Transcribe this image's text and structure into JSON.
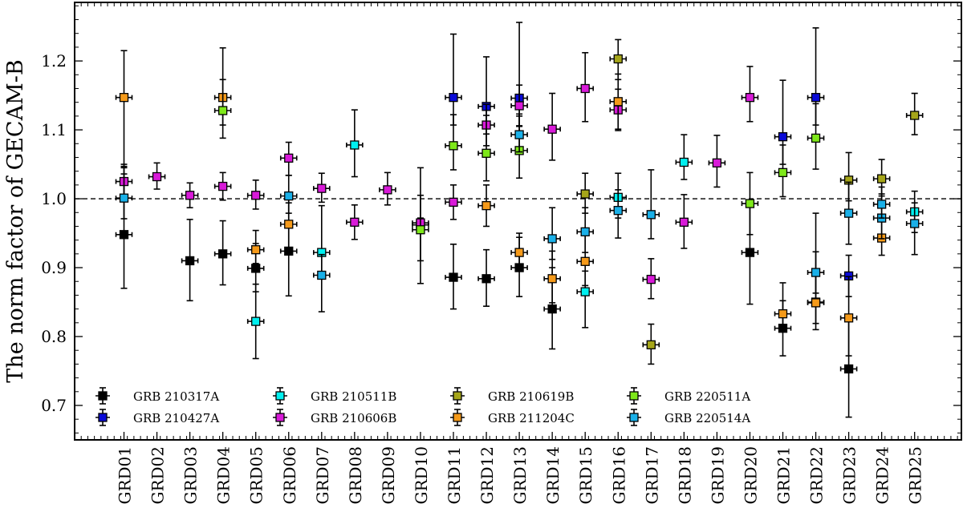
{
  "chart_data": {
    "type": "scatter",
    "title": "",
    "xlabel": "",
    "ylabel": "The norm factor of GECAM-B",
    "ylim": [
      0.65,
      1.285
    ],
    "yticks": [
      0.7,
      0.8,
      0.9,
      1.0,
      1.1,
      1.2
    ],
    "ytick_labels": [
      "0.7",
      "0.8",
      "0.9",
      "1.0",
      "1.1",
      "1.2"
    ],
    "reference_line": 1.0,
    "categories": [
      "GRD01",
      "GRD02",
      "GRD03",
      "GRD04",
      "GRD05",
      "GRD06",
      "GRD07",
      "GRD08",
      "GRD09",
      "GRD10",
      "GRD11",
      "GRD12",
      "GRD13",
      "GRD14",
      "GRD15",
      "GRD16",
      "GRD17",
      "GRD18",
      "GRD19",
      "GRD20",
      "GRD21",
      "GRD22",
      "GRD23",
      "GRD24",
      "GRD25"
    ],
    "legend_position": "bottom-left",
    "series": [
      {
        "name": "GRB 210317A",
        "color": "#000000",
        "points": [
          {
            "x": "GRD01",
            "y": 0.948,
            "err_lo": 0.078,
            "err_hi": 0.097
          },
          {
            "x": "GRD03",
            "y": 0.91,
            "err_lo": 0.058,
            "err_hi": 0.06
          },
          {
            "x": "GRD04",
            "y": 0.92,
            "err_lo": 0.045,
            "err_hi": 0.048
          },
          {
            "x": "GRD05",
            "y": 0.899,
            "err_lo": 0.034,
            "err_hi": 0.036
          },
          {
            "x": "GRD06",
            "y": 0.924,
            "err_lo": 0.065,
            "err_hi": 0.07
          },
          {
            "x": "GRD11",
            "y": 0.886,
            "err_lo": 0.046,
            "err_hi": 0.048
          },
          {
            "x": "GRD12",
            "y": 0.884,
            "err_lo": 0.04,
            "err_hi": 0.042
          },
          {
            "x": "GRD13",
            "y": 0.9,
            "err_lo": 0.042,
            "err_hi": 0.044
          },
          {
            "x": "GRD14",
            "y": 0.84,
            "err_lo": 0.058,
            "err_hi": 0.06
          },
          {
            "x": "GRD20",
            "y": 0.922,
            "err_lo": 0.075,
            "err_hi": 0.075
          },
          {
            "x": "GRD21",
            "y": 0.812,
            "err_lo": 0.04,
            "err_hi": 0.04
          },
          {
            "x": "GRD22",
            "y": 0.85,
            "err_lo": 0.04,
            "err_hi": 0.04
          },
          {
            "x": "GRD23",
            "y": 0.753,
            "err_lo": 0.07,
            "err_hi": 0.07
          }
        ]
      },
      {
        "name": "GRB 210427A",
        "color": "#0a0ad8",
        "points": [
          {
            "x": "GRD11",
            "y": 1.147,
            "err_lo": 0.04,
            "err_hi": 0.092
          },
          {
            "x": "GRD12",
            "y": 1.134,
            "err_lo": 0.04,
            "err_hi": 0.072
          },
          {
            "x": "GRD13",
            "y": 1.146,
            "err_lo": 0.04,
            "err_hi": 0.11
          },
          {
            "x": "GRD21",
            "y": 1.09,
            "err_lo": 0.04,
            "err_hi": 0.082
          },
          {
            "x": "GRD22",
            "y": 1.147,
            "err_lo": 0.04,
            "err_hi": 0.101
          },
          {
            "x": "GRD23",
            "y": 0.888,
            "err_lo": 0.03,
            "err_hi": 0.03
          }
        ]
      },
      {
        "name": "GRB 210511B",
        "color": "#00f0f0",
        "points": [
          {
            "x": "GRD05",
            "y": 0.822,
            "err_lo": 0.054,
            "err_hi": 0.054
          },
          {
            "x": "GRD07",
            "y": 0.922,
            "err_lo": 0.032,
            "err_hi": 0.068
          },
          {
            "x": "GRD08",
            "y": 1.078,
            "err_lo": 0.046,
            "err_hi": 0.051
          },
          {
            "x": "GRD10",
            "y": 0.962,
            "err_lo": 0.01,
            "err_hi": 0.01
          },
          {
            "x": "GRD15",
            "y": 0.865,
            "err_lo": 0.052,
            "err_hi": 0.03
          },
          {
            "x": "GRD16",
            "y": 1.002,
            "err_lo": 0.03,
            "err_hi": 0.035
          },
          {
            "x": "GRD18",
            "y": 1.053,
            "err_lo": 0.025,
            "err_hi": 0.04
          },
          {
            "x": "GRD25",
            "y": 0.981,
            "err_lo": 0.03,
            "err_hi": 0.03
          }
        ]
      },
      {
        "name": "GRB 210606B",
        "color": "#d81ad8",
        "points": [
          {
            "x": "GRD01",
            "y": 1.025,
            "err_lo": 0.025,
            "err_hi": 0.025
          },
          {
            "x": "GRD02",
            "y": 1.032,
            "err_lo": 0.018,
            "err_hi": 0.02
          },
          {
            "x": "GRD03",
            "y": 1.005,
            "err_lo": 0.018,
            "err_hi": 0.018
          },
          {
            "x": "GRD04",
            "y": 1.018,
            "err_lo": 0.02,
            "err_hi": 0.02
          },
          {
            "x": "GRD05",
            "y": 1.005,
            "err_lo": 0.02,
            "err_hi": 0.022
          },
          {
            "x": "GRD06",
            "y": 1.059,
            "err_lo": 0.025,
            "err_hi": 0.023
          },
          {
            "x": "GRD07",
            "y": 1.015,
            "err_lo": 0.02,
            "err_hi": 0.022
          },
          {
            "x": "GRD08",
            "y": 0.966,
            "err_lo": 0.025,
            "err_hi": 0.025
          },
          {
            "x": "GRD09",
            "y": 1.013,
            "err_lo": 0.022,
            "err_hi": 0.025
          },
          {
            "x": "GRD10",
            "y": 0.965,
            "err_lo": 0.088,
            "err_hi": 0.08
          },
          {
            "x": "GRD11",
            "y": 0.995,
            "err_lo": 0.025,
            "err_hi": 0.025
          },
          {
            "x": "GRD12",
            "y": 1.107,
            "err_lo": 0.03,
            "err_hi": 0.03
          },
          {
            "x": "GRD13",
            "y": 1.135,
            "err_lo": 0.03,
            "err_hi": 0.03
          },
          {
            "x": "GRD14",
            "y": 1.101,
            "err_lo": 0.045,
            "err_hi": 0.052
          },
          {
            "x": "GRD15",
            "y": 1.16,
            "err_lo": 0.048,
            "err_hi": 0.052
          },
          {
            "x": "GRD16",
            "y": 1.129,
            "err_lo": 0.03,
            "err_hi": 0.03
          },
          {
            "x": "GRD17",
            "y": 0.883,
            "err_lo": 0.028,
            "err_hi": 0.03
          },
          {
            "x": "GRD18",
            "y": 0.966,
            "err_lo": 0.038,
            "err_hi": 0.04
          },
          {
            "x": "GRD19",
            "y": 1.052,
            "err_lo": 0.035,
            "err_hi": 0.04
          },
          {
            "x": "GRD20",
            "y": 1.147,
            "err_lo": 0.035,
            "err_hi": 0.045
          }
        ]
      },
      {
        "name": "GRB 210619B",
        "color": "#a6a61a",
        "points": [
          {
            "x": "GRD15",
            "y": 1.007,
            "err_lo": 0.028,
            "err_hi": 0.03
          },
          {
            "x": "GRD16",
            "y": 1.203,
            "err_lo": 0.03,
            "err_hi": 0.028
          },
          {
            "x": "GRD17",
            "y": 0.788,
            "err_lo": 0.028,
            "err_hi": 0.03
          },
          {
            "x": "GRD23",
            "y": 1.027,
            "err_lo": 0.03,
            "err_hi": 0.04
          },
          {
            "x": "GRD24",
            "y": 1.029,
            "err_lo": 0.025,
            "err_hi": 0.028
          },
          {
            "x": "GRD25",
            "y": 1.121,
            "err_lo": 0.028,
            "err_hi": 0.032
          }
        ]
      },
      {
        "name": "GRB 211204C",
        "color": "#f59a1a",
        "points": [
          {
            "x": "GRD01",
            "y": 1.147,
            "err_lo": 0.1,
            "err_hi": 0.068
          },
          {
            "x": "GRD04",
            "y": 1.147,
            "err_lo": 0.04,
            "err_hi": 0.072
          },
          {
            "x": "GRD05",
            "y": 0.926,
            "err_lo": 0.02,
            "err_hi": 0.028
          },
          {
            "x": "GRD06",
            "y": 0.963,
            "err_lo": 0.04,
            "err_hi": 0.04
          },
          {
            "x": "GRD12",
            "y": 0.99,
            "err_lo": 0.03,
            "err_hi": 0.03
          },
          {
            "x": "GRD13",
            "y": 0.922,
            "err_lo": 0.02,
            "err_hi": 0.028
          },
          {
            "x": "GRD14",
            "y": 0.884,
            "err_lo": 0.035,
            "err_hi": 0.04
          },
          {
            "x": "GRD15",
            "y": 0.909,
            "err_lo": 0.035,
            "err_hi": 0.04
          },
          {
            "x": "GRD16",
            "y": 1.141,
            "err_lo": 0.04,
            "err_hi": 0.04
          },
          {
            "x": "GRD21",
            "y": 0.833,
            "err_lo": 0.025,
            "err_hi": 0.045
          },
          {
            "x": "GRD22",
            "y": 0.849,
            "err_lo": 0.03,
            "err_hi": 0.13
          },
          {
            "x": "GRD23",
            "y": 0.827,
            "err_lo": 0.055,
            "err_hi": 0.06
          },
          {
            "x": "GRD24",
            "y": 0.943,
            "err_lo": 0.025,
            "err_hi": 0.03
          }
        ]
      },
      {
        "name": "GRB 220511A",
        "color": "#7ee81a",
        "points": [
          {
            "x": "GRD04",
            "y": 1.128,
            "err_lo": 0.04,
            "err_hi": 0.045
          },
          {
            "x": "GRD10",
            "y": 0.955,
            "err_lo": 0.045,
            "err_hi": 0.05
          },
          {
            "x": "GRD11",
            "y": 1.077,
            "err_lo": 0.035,
            "err_hi": 0.045
          },
          {
            "x": "GRD12",
            "y": 1.066,
            "err_lo": 0.04,
            "err_hi": 0.055
          },
          {
            "x": "GRD13",
            "y": 1.07,
            "err_lo": 0.04,
            "err_hi": 0.05
          },
          {
            "x": "GRD20",
            "y": 0.993,
            "err_lo": 0.045,
            "err_hi": 0.045
          },
          {
            "x": "GRD21",
            "y": 1.038,
            "err_lo": 0.035,
            "err_hi": 0.04
          },
          {
            "x": "GRD22",
            "y": 1.088,
            "err_lo": 0.045,
            "err_hi": 0.05
          }
        ]
      },
      {
        "name": "GRB 220514A",
        "color": "#1ab0e8",
        "points": [
          {
            "x": "GRD01",
            "y": 1.001,
            "err_lo": 0.03,
            "err_hi": 0.035
          },
          {
            "x": "GRD06",
            "y": 1.004,
            "err_lo": 0.025,
            "err_hi": 0.03
          },
          {
            "x": "GRD07",
            "y": 0.889,
            "err_lo": 0.053,
            "err_hi": 0.03
          },
          {
            "x": "GRD13",
            "y": 1.093,
            "err_lo": 0.025,
            "err_hi": 0.03
          },
          {
            "x": "GRD14",
            "y": 0.942,
            "err_lo": 0.03,
            "err_hi": 0.045
          },
          {
            "x": "GRD15",
            "y": 0.952,
            "err_lo": 0.03,
            "err_hi": 0.035
          },
          {
            "x": "GRD16",
            "y": 0.983,
            "err_lo": 0.04,
            "err_hi": 0.03
          },
          {
            "x": "GRD17",
            "y": 0.977,
            "err_lo": 0.035,
            "err_hi": 0.065
          },
          {
            "x": "GRD22",
            "y": 0.893,
            "err_lo": 0.03,
            "err_hi": 0.03
          },
          {
            "x": "GRD23",
            "y": 0.979,
            "err_lo": 0.045,
            "err_hi": 0.045
          },
          {
            "x": "GRD24",
            "y": 0.972,
            "err_lo": 0.03,
            "err_hi": 0.035
          },
          {
            "x": "GRD24",
            "y": 0.992,
            "err_lo": 0.02,
            "err_hi": 0.025
          },
          {
            "x": "GRD25",
            "y": 0.964,
            "err_lo": 0.045,
            "err_hi": 0.03
          }
        ]
      }
    ]
  }
}
